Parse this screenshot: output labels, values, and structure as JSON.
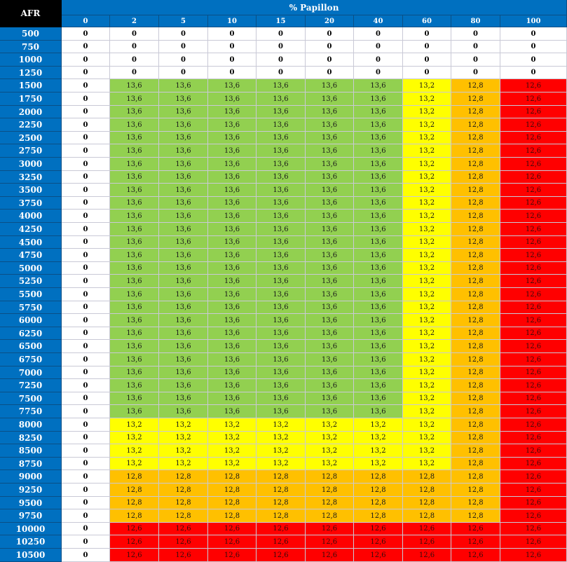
{
  "table": {
    "corner_label": "AFR",
    "title": "% Papillon",
    "columns": [
      "0",
      "2",
      "5",
      "10",
      "15",
      "20",
      "40",
      "60",
      "80",
      "100"
    ],
    "row_labels": [
      "500",
      "750",
      "1000",
      "1250",
      "1500",
      "1750",
      "2000",
      "2250",
      "2500",
      "2750",
      "3000",
      "3250",
      "3500",
      "3750",
      "4000",
      "4250",
      "4500",
      "4750",
      "5000",
      "5250",
      "5500",
      "5750",
      "6000",
      "6250",
      "6500",
      "6750",
      "7000",
      "7250",
      "7500",
      "7750",
      "8000",
      "8250",
      "8500",
      "8750",
      "9000",
      "9250",
      "9500",
      "9750",
      "10000",
      "10250",
      "10500"
    ],
    "values": [
      [
        "0",
        "0",
        "0",
        "0",
        "0",
        "0",
        "0",
        "0",
        "0",
        "0"
      ],
      [
        "0",
        "0",
        "0",
        "0",
        "0",
        "0",
        "0",
        "0",
        "0",
        "0"
      ],
      [
        "0",
        "0",
        "0",
        "0",
        "0",
        "0",
        "0",
        "0",
        "0",
        "0"
      ],
      [
        "0",
        "0",
        "0",
        "0",
        "0",
        "0",
        "0",
        "0",
        "0",
        "0"
      ],
      [
        "0",
        "13,6",
        "13,6",
        "13,6",
        "13,6",
        "13,6",
        "13,6",
        "13,2",
        "12,8",
        "12,6"
      ],
      [
        "0",
        "13,6",
        "13,6",
        "13,6",
        "13,6",
        "13,6",
        "13,6",
        "13,2",
        "12,8",
        "12,6"
      ],
      [
        "0",
        "13,6",
        "13,6",
        "13,6",
        "13,6",
        "13,6",
        "13,6",
        "13,2",
        "12,8",
        "12,6"
      ],
      [
        "0",
        "13,6",
        "13,6",
        "13,6",
        "13,6",
        "13,6",
        "13,6",
        "13,2",
        "12,8",
        "12,6"
      ],
      [
        "0",
        "13,6",
        "13,6",
        "13,6",
        "13,6",
        "13,6",
        "13,6",
        "13,2",
        "12,8",
        "12,6"
      ],
      [
        "0",
        "13,6",
        "13,6",
        "13,6",
        "13,6",
        "13,6",
        "13,6",
        "13,2",
        "12,8",
        "12,6"
      ],
      [
        "0",
        "13,6",
        "13,6",
        "13,6",
        "13,6",
        "13,6",
        "13,6",
        "13,2",
        "12,8",
        "12,6"
      ],
      [
        "0",
        "13,6",
        "13,6",
        "13,6",
        "13,6",
        "13,6",
        "13,6",
        "13,2",
        "12,8",
        "12,6"
      ],
      [
        "0",
        "13,6",
        "13,6",
        "13,6",
        "13,6",
        "13,6",
        "13,6",
        "13,2",
        "12,8",
        "12,6"
      ],
      [
        "0",
        "13,6",
        "13,6",
        "13,6",
        "13,6",
        "13,6",
        "13,6",
        "13,2",
        "12,8",
        "12,6"
      ],
      [
        "0",
        "13,6",
        "13,6",
        "13,6",
        "13,6",
        "13,6",
        "13,6",
        "13,2",
        "12,8",
        "12,6"
      ],
      [
        "0",
        "13,6",
        "13,6",
        "13,6",
        "13,6",
        "13,6",
        "13,6",
        "13,2",
        "12,8",
        "12,6"
      ],
      [
        "0",
        "13,6",
        "13,6",
        "13,6",
        "13,6",
        "13,6",
        "13,6",
        "13,2",
        "12,8",
        "12,6"
      ],
      [
        "0",
        "13,6",
        "13,6",
        "13,6",
        "13,6",
        "13,6",
        "13,6",
        "13,2",
        "12,8",
        "12,6"
      ],
      [
        "0",
        "13,6",
        "13,6",
        "13,6",
        "13,6",
        "13,6",
        "13,6",
        "13,2",
        "12,8",
        "12,6"
      ],
      [
        "0",
        "13,6",
        "13,6",
        "13,6",
        "13,6",
        "13,6",
        "13,6",
        "13,2",
        "12,8",
        "12,6"
      ],
      [
        "0",
        "13,6",
        "13,6",
        "13,6",
        "13,6",
        "13,6",
        "13,6",
        "13,2",
        "12,8",
        "12,6"
      ],
      [
        "0",
        "13,6",
        "13,6",
        "13,6",
        "13,6",
        "13,6",
        "13,6",
        "13,2",
        "12,8",
        "12,6"
      ],
      [
        "0",
        "13,6",
        "13,6",
        "13,6",
        "13,6",
        "13,6",
        "13,6",
        "13,2",
        "12,8",
        "12,6"
      ],
      [
        "0",
        "13,6",
        "13,6",
        "13,6",
        "13,6",
        "13,6",
        "13,6",
        "13,2",
        "12,8",
        "12,6"
      ],
      [
        "0",
        "13,6",
        "13,6",
        "13,6",
        "13,6",
        "13,6",
        "13,6",
        "13,2",
        "12,8",
        "12,6"
      ],
      [
        "0",
        "13,6",
        "13,6",
        "13,6",
        "13,6",
        "13,6",
        "13,6",
        "13,2",
        "12,8",
        "12,6"
      ],
      [
        "0",
        "13,6",
        "13,6",
        "13,6",
        "13,6",
        "13,6",
        "13,6",
        "13,2",
        "12,8",
        "12,6"
      ],
      [
        "0",
        "13,6",
        "13,6",
        "13,6",
        "13,6",
        "13,6",
        "13,6",
        "13,2",
        "12,8",
        "12,6"
      ],
      [
        "0",
        "13,6",
        "13,6",
        "13,6",
        "13,6",
        "13,6",
        "13,6",
        "13,2",
        "12,8",
        "12,6"
      ],
      [
        "0",
        "13,6",
        "13,6",
        "13,6",
        "13,6",
        "13,6",
        "13,6",
        "13,2",
        "12,8",
        "12,6"
      ],
      [
        "0",
        "13,2",
        "13,2",
        "13,2",
        "13,2",
        "13,2",
        "13,2",
        "13,2",
        "12,8",
        "12,6"
      ],
      [
        "0",
        "13,2",
        "13,2",
        "13,2",
        "13,2",
        "13,2",
        "13,2",
        "13,2",
        "12,8",
        "12,6"
      ],
      [
        "0",
        "13,2",
        "13,2",
        "13,2",
        "13,2",
        "13,2",
        "13,2",
        "13,2",
        "12,8",
        "12,6"
      ],
      [
        "0",
        "13,2",
        "13,2",
        "13,2",
        "13,2",
        "13,2",
        "13,2",
        "13,2",
        "12,8",
        "12,6"
      ],
      [
        "0",
        "12,8",
        "12,8",
        "12,8",
        "12,8",
        "12,8",
        "12,8",
        "12,8",
        "12,8",
        "12,6"
      ],
      [
        "0",
        "12,8",
        "12,8",
        "12,8",
        "12,8",
        "12,8",
        "12,8",
        "12,8",
        "12,8",
        "12,6"
      ],
      [
        "0",
        "12,8",
        "12,8",
        "12,8",
        "12,8",
        "12,8",
        "12,8",
        "12,8",
        "12,8",
        "12,6"
      ],
      [
        "0",
        "12,8",
        "12,8",
        "12,8",
        "12,8",
        "12,8",
        "12,8",
        "12,8",
        "12,8",
        "12,6"
      ],
      [
        "0",
        "12,6",
        "12,6",
        "12,6",
        "12,6",
        "12,6",
        "12,6",
        "12,6",
        "12,6",
        "12,6"
      ],
      [
        "0",
        "12,6",
        "12,6",
        "12,6",
        "12,6",
        "12,6",
        "12,6",
        "12,6",
        "12,6",
        "12,6"
      ],
      [
        "0",
        "12,6",
        "12,6",
        "12,6",
        "12,6",
        "12,6",
        "12,6",
        "12,6",
        "12,6",
        "12,6"
      ]
    ]
  },
  "colors": {
    "header_blue": "#0070c0",
    "corner_black": "#000000",
    "13,6": "#92d050",
    "13,2": "#ffff00",
    "12,8": "#ffc000",
    "12,6": "#ff0000",
    "0": "#ffffff"
  }
}
